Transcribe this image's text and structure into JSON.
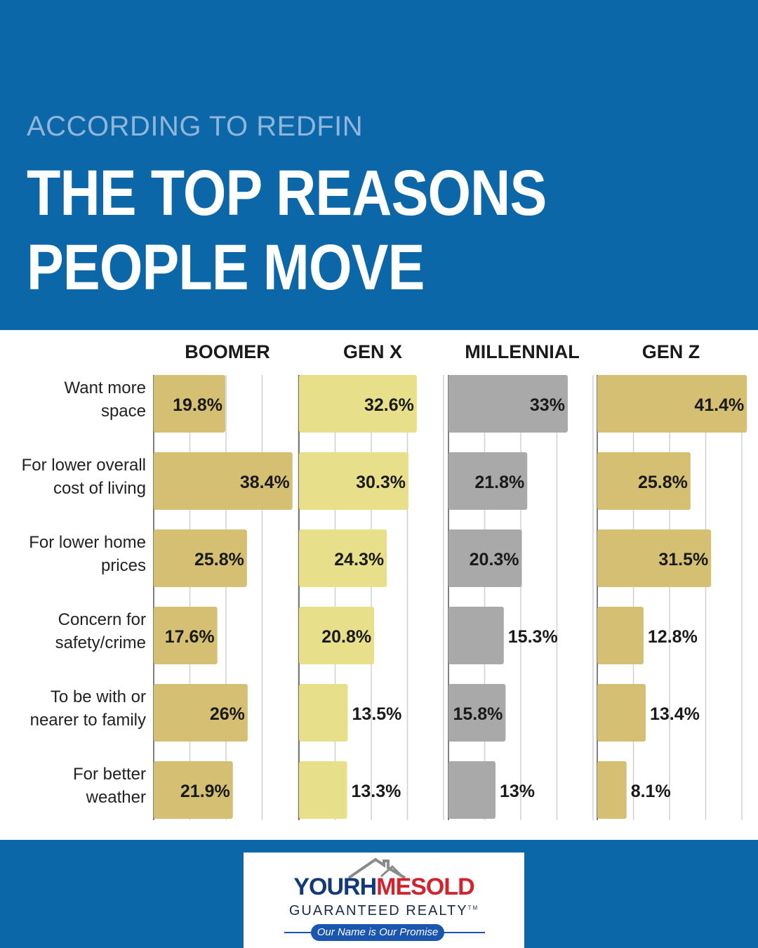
{
  "header": {
    "subtitle": "ACCORDING TO REDFIN",
    "title_line1": "THE TOP REASONS",
    "title_line2": "PEOPLE MOVE"
  },
  "colors": {
    "brand_blue": "#0b67a8",
    "boomer": "#d4bf73",
    "gen_x": "#e8df8a",
    "millennial": "#a9a9a9",
    "gen_z": "#d4bf73"
  },
  "chart_data": {
    "type": "bar",
    "orientation": "horizontal",
    "title": "THE TOP REASONS PEOPLE MOVE",
    "grid": true,
    "xlim": [
      0,
      50
    ],
    "categories": [
      [
        "Want more",
        "space"
      ],
      [
        "For lower overall",
        "cost of living"
      ],
      [
        "For lower home",
        "prices"
      ],
      [
        "Concern for",
        "safety/crime"
      ],
      [
        "To be with or",
        "nearer to family"
      ],
      [
        "For better",
        "weather"
      ]
    ],
    "series": [
      {
        "name": "BOOMER",
        "values": [
          19.8,
          38.4,
          25.8,
          17.6,
          26,
          21.9
        ],
        "labels": [
          "19.8%",
          "38.4%",
          "25.8%",
          "17.6%",
          "26%",
          "21.9%"
        ]
      },
      {
        "name": "GEN X",
        "values": [
          32.6,
          30.3,
          24.3,
          20.8,
          13.5,
          13.3
        ],
        "labels": [
          "32.6%",
          "30.3%",
          "24.3%",
          "20.8%",
          "13.5%",
          "13.3%"
        ]
      },
      {
        "name": "MILLENNIAL",
        "values": [
          33,
          21.8,
          20.3,
          15.3,
          15.8,
          13
        ],
        "labels": [
          "33%",
          "21.8%",
          "20.3%",
          "15.3%",
          "15.8%",
          "13%"
        ]
      },
      {
        "name": "GEN Z",
        "values": [
          41.4,
          25.8,
          31.5,
          12.8,
          13.4,
          8.1
        ],
        "labels": [
          "41.4%",
          "25.8%",
          "31.5%",
          "12.8%",
          "13.4%",
          "8.1%"
        ]
      }
    ]
  },
  "logo": {
    "word_part1": "YOURH",
    "word_part2": "ME",
    "word_part3": "SOLD",
    "tagline": "GUARANTEED REALTY",
    "trademark": "TM",
    "motto": "Our Name is Our Promise"
  }
}
